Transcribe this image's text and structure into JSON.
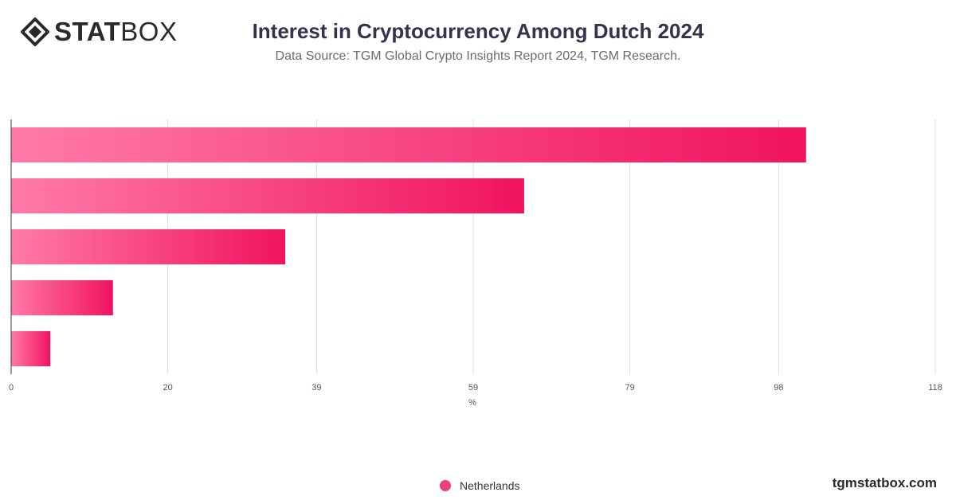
{
  "brand": {
    "logo_bold": "STAT",
    "logo_light": "BOX",
    "site": "tgmstatbox.com"
  },
  "header": {
    "title": "Interest in Cryptocurrency Among Dutch 2024",
    "subtitle": "Data Source: TGM Global Crypto Insights Report 2024, TGM Research."
  },
  "colors": {
    "bar_start": "#ff7aa8",
    "bar_end": "#f0135f",
    "legend_marker": "#ee3c7f",
    "grid": "#dddddd"
  },
  "chart_data": {
    "type": "bar",
    "orientation": "horizontal",
    "categories": [
      "",
      "",
      "",
      "",
      ""
    ],
    "series": [
      {
        "name": "Netherlands",
        "values": [
          101.5,
          65.5,
          35,
          13,
          5
        ]
      }
    ],
    "xlabel": "%",
    "ylabel": "",
    "xlim": [
      0,
      118
    ],
    "xticks": [
      0,
      20,
      39,
      59,
      79,
      98,
      118
    ],
    "grid": true,
    "legend": "bottom-center"
  }
}
